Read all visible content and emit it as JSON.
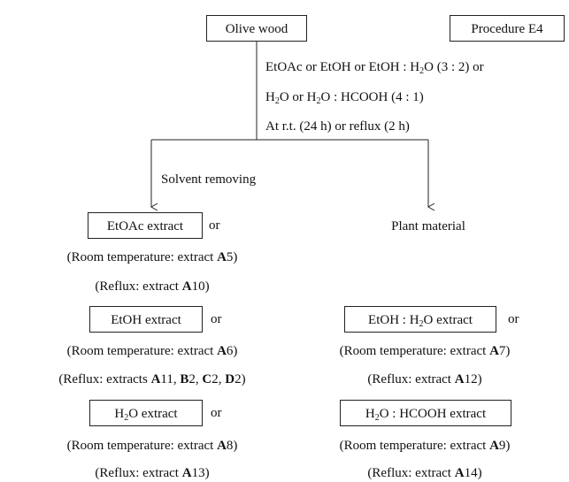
{
  "header": {
    "source": "Olive wood",
    "procedure": "Procedure E4"
  },
  "conditions": [
    [
      "EtOAc or EtOH or EtOH : H",
      "2",
      "O (3 : 2) or"
    ],
    [
      "H",
      "2",
      "O or H",
      "2",
      "O : HCOOH (4 : 1)"
    ],
    [
      "At r.t. (24 h) or reflux (2 h)"
    ]
  ],
  "branches": {
    "left": "Solvent removing",
    "right": "Plant material"
  },
  "extracts": [
    {
      "label": [
        "EtOAc extract"
      ],
      "or": "or",
      "rt": [
        "(Room temperature: extract ",
        "A",
        "5)"
      ],
      "reflux": [
        "(Reflux: extract ",
        "A",
        "10)"
      ]
    },
    {
      "label": [
        "EtOH extract"
      ],
      "or": "or",
      "rt": [
        "(Room temperature: extract ",
        "A",
        "6)"
      ],
      "reflux": [
        "(Reflux: extracts ",
        "A",
        "11, ",
        "B",
        "2, ",
        "C",
        "2, ",
        "D",
        "2)"
      ]
    },
    {
      "label": [
        "H",
        "2",
        "O extract"
      ],
      "or": "or",
      "rt": [
        "(Room temperature: extract ",
        "A",
        "8)"
      ],
      "reflux": [
        "(Reflux: extract ",
        "A",
        "13)"
      ]
    },
    {
      "label": [
        "EtOH : H",
        "2",
        "O extract"
      ],
      "or": "or",
      "rt": [
        "(Room temperature: extract ",
        "A",
        "7)"
      ],
      "reflux": [
        "(Reflux: extract ",
        "A",
        "12)"
      ]
    },
    {
      "label": [
        "H",
        "2",
        "O : HCOOH extract"
      ],
      "rt": [
        "(Room temperature: extract ",
        "A",
        "9)"
      ],
      "reflux": [
        "(Reflux: extract ",
        "A",
        "14)"
      ]
    }
  ]
}
